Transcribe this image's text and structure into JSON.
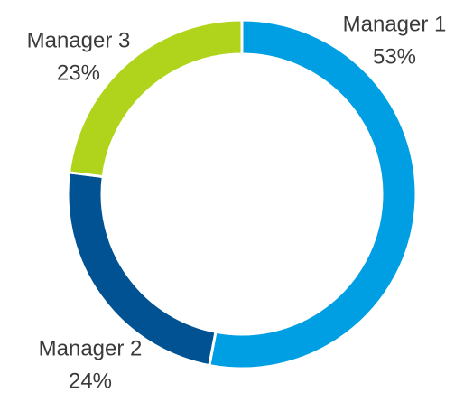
{
  "chart_data": {
    "type": "donut",
    "categories": [
      "Manager 1",
      "Manager 2",
      "Manager 3"
    ],
    "values": [
      53,
      24,
      23
    ],
    "value_labels": [
      "53%",
      "24%",
      "23%"
    ],
    "colors": [
      "#009fe3",
      "#005293",
      "#b0d41c"
    ]
  }
}
